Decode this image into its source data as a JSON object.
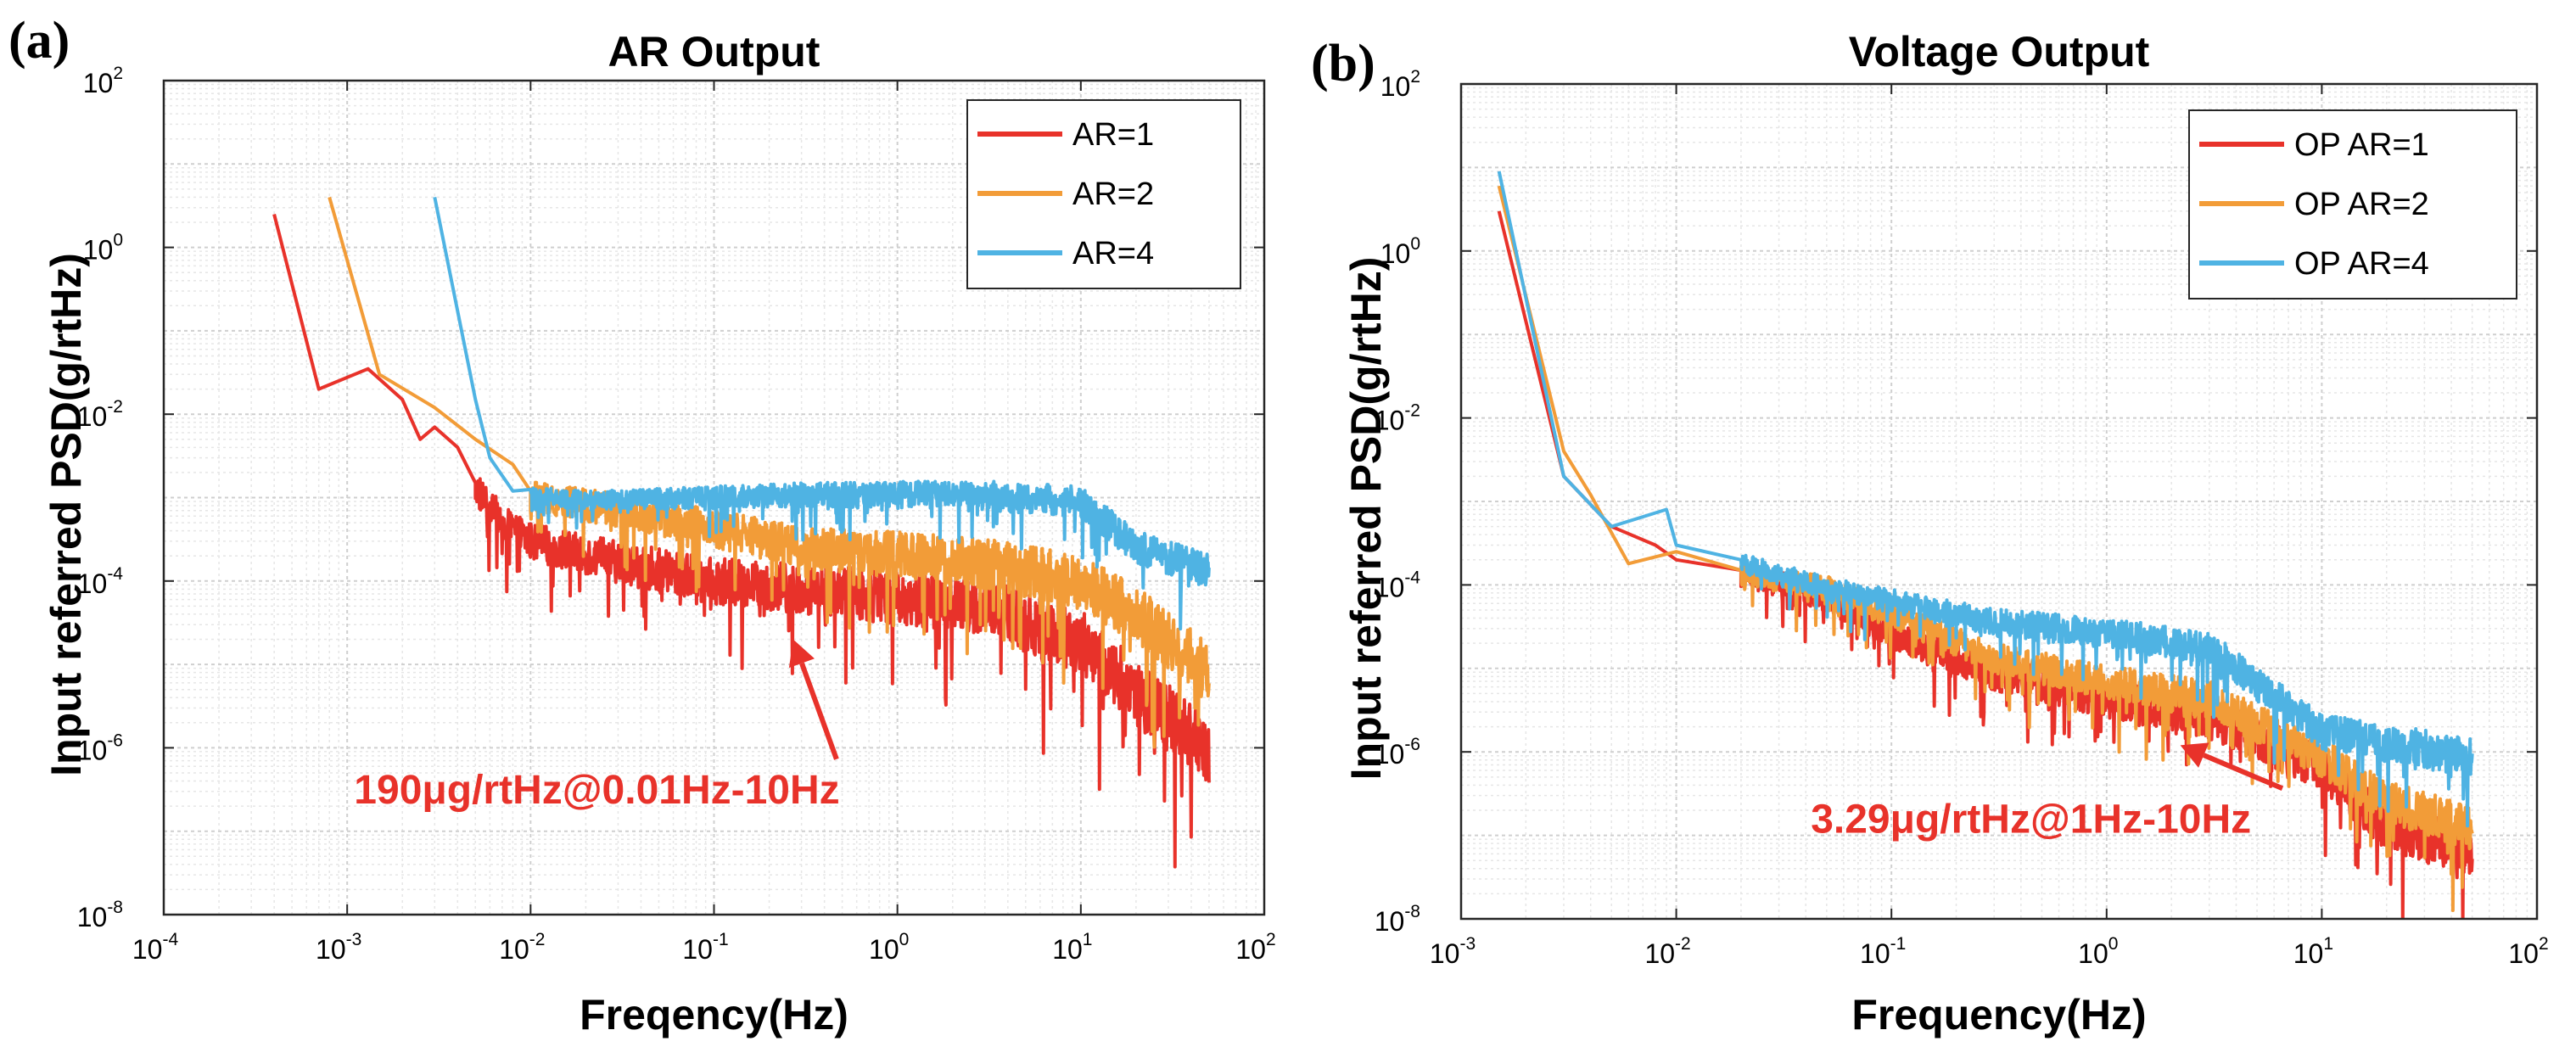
{
  "chart_data": [
    {
      "type": "line",
      "panel_label": "(a)",
      "title": "AR Output",
      "xlabel": "Freqency(Hz)",
      "ylabel": "Input referred PSD(g/rtHz)",
      "xscale": "log",
      "yscale": "log",
      "xlim": [
        0.0001,
        100
      ],
      "ylim": [
        1e-08,
        100
      ],
      "x_ticks": [
        {
          "base": "10",
          "exp": "-4"
        },
        {
          "base": "10",
          "exp": "-3"
        },
        {
          "base": "10",
          "exp": "-2"
        },
        {
          "base": "10",
          "exp": "-1"
        },
        {
          "base": "10",
          "exp": "0"
        },
        {
          "base": "10",
          "exp": "1"
        },
        {
          "base": "10",
          "exp": "2"
        }
      ],
      "y_ticks": [
        {
          "base": "10",
          "exp": "-8"
        },
        {
          "base": "10",
          "exp": "-6"
        },
        {
          "base": "10",
          "exp": "-4"
        },
        {
          "base": "10",
          "exp": "-2"
        },
        {
          "base": "10",
          "exp": "0"
        },
        {
          "base": "10",
          "exp": "2"
        }
      ],
      "grid": true,
      "legend": {
        "position": "top-right",
        "entries": [
          "AR=1",
          "AR=2",
          "AR=4"
        ]
      },
      "series": [
        {
          "name": "AR=1",
          "color": "#e8322a",
          "points": [
            [
              0.0004,
              2.5
            ],
            [
              0.0007,
              0.02
            ],
            [
              0.0013,
              0.035
            ],
            [
              0.002,
              0.015
            ],
            [
              0.0025,
              0.005
            ],
            [
              0.003,
              0.007
            ],
            [
              0.004,
              0.004
            ],
            [
              0.005,
              0.0015
            ],
            [
              0.007,
              0.0006
            ],
            [
              0.01,
              0.00035
            ],
            [
              0.03,
              0.0002
            ],
            [
              0.1,
              0.00012
            ],
            [
              0.3,
              0.0001
            ],
            [
              1,
              8e-05
            ],
            [
              3,
              6e-05
            ],
            [
              10,
              2.5e-05
            ],
            [
              20,
              6e-06
            ],
            [
              50,
              1.2e-06
            ]
          ],
          "noise": {
            "from": 0.005,
            "to": 50,
            "amplitude_decades": 1.4
          }
        },
        {
          "name": "AR=2",
          "color": "#f29c38",
          "points": [
            [
              0.0008,
              4
            ],
            [
              0.0015,
              0.03
            ],
            [
              0.003,
              0.012
            ],
            [
              0.005,
              0.005
            ],
            [
              0.008,
              0.0025
            ],
            [
              0.01,
              0.0012
            ],
            [
              0.03,
              0.0008
            ],
            [
              0.1,
              0.0005
            ],
            [
              0.3,
              0.0003
            ],
            [
              1,
              0.00025
            ],
            [
              3,
              0.0002
            ],
            [
              10,
              0.00012
            ],
            [
              20,
              5e-05
            ],
            [
              50,
              1e-05
            ]
          ],
          "noise": {
            "from": 0.01,
            "to": 50,
            "amplitude_decades": 1.2
          }
        },
        {
          "name": "AR=4",
          "color": "#4fb3e3",
          "points": [
            [
              0.003,
              4
            ],
            [
              0.005,
              0.015
            ],
            [
              0.006,
              0.003
            ],
            [
              0.008,
              0.0012
            ],
            [
              0.02,
              0.001
            ],
            [
              0.1,
              0.0011
            ],
            [
              0.3,
              0.0012
            ],
            [
              1,
              0.0012
            ],
            [
              3,
              0.0012
            ],
            [
              10,
              0.001
            ],
            [
              20,
              0.0003
            ],
            [
              50,
              0.00015
            ]
          ],
          "noise": {
            "from": 0.01,
            "to": 50,
            "amplitude_decades": 0.7
          }
        }
      ],
      "annotation": {
        "text": "190μg/rtHz@0.01Hz-10Hz",
        "color": "#e8322a",
        "arrow_to": [
          0.27,
          2e-05
        ],
        "text_at": [
          0.003,
          3e-07
        ]
      }
    },
    {
      "type": "line",
      "panel_label": "(b)",
      "title": "Voltage Output",
      "xlabel": "Frequency(Hz)",
      "ylabel": "Input referred PSD(g/rtHz)",
      "xscale": "log",
      "yscale": "log",
      "xlim": [
        0.001,
        100
      ],
      "ylim": [
        1e-08,
        100
      ],
      "x_ticks": [
        {
          "base": "10",
          "exp": "-3"
        },
        {
          "base": "10",
          "exp": "-2"
        },
        {
          "base": "10",
          "exp": "-1"
        },
        {
          "base": "10",
          "exp": "0"
        },
        {
          "base": "10",
          "exp": "1"
        },
        {
          "base": "10",
          "exp": "2"
        }
      ],
      "y_ticks": [
        {
          "base": "10",
          "exp": "-8"
        },
        {
          "base": "10",
          "exp": "-6"
        },
        {
          "base": "10",
          "exp": "-4"
        },
        {
          "base": "10",
          "exp": "-2"
        },
        {
          "base": "10",
          "exp": "0"
        },
        {
          "base": "10",
          "exp": "2"
        }
      ],
      "grid": true,
      "legend": {
        "position": "top-right",
        "entries": [
          "OP AR=1",
          "OP AR=2",
          "OP AR=4"
        ]
      },
      "series": [
        {
          "name": "OP AR=1",
          "color": "#e8322a",
          "points": [
            [
              0.0015,
              3
            ],
            [
              0.003,
              0.002
            ],
            [
              0.005,
              0.0005
            ],
            [
              0.008,
              0.0003
            ],
            [
              0.01,
              0.0002
            ],
            [
              0.02,
              0.00015
            ],
            [
              0.05,
              8e-05
            ],
            [
              0.1,
              3e-05
            ],
            [
              0.3,
              1e-05
            ],
            [
              1,
              5e-06
            ],
            [
              3,
              3e-06
            ],
            [
              10,
              8e-07
            ],
            [
              20,
              1.5e-07
            ],
            [
              50,
              8e-08
            ]
          ],
          "noise": {
            "from": 0.02,
            "to": 50,
            "amplitude_decades": 1.0
          }
        },
        {
          "name": "OP AR=2",
          "color": "#f29c38",
          "points": [
            [
              0.0015,
              6
            ],
            [
              0.003,
              0.004
            ],
            [
              0.004,
              0.0012
            ],
            [
              0.006,
              0.00018
            ],
            [
              0.01,
              0.00025
            ],
            [
              0.02,
              0.00015
            ],
            [
              0.05,
              0.0001
            ],
            [
              0.1,
              5e-05
            ],
            [
              0.3,
              1.5e-05
            ],
            [
              1,
              8e-06
            ],
            [
              3,
              5e-06
            ],
            [
              10,
              1e-06
            ],
            [
              20,
              3e-07
            ],
            [
              50,
              1.5e-07
            ]
          ],
          "noise": {
            "from": 0.02,
            "to": 50,
            "amplitude_decades": 0.9
          }
        },
        {
          "name": "OP AR=4",
          "color": "#4fb3e3",
          "points": [
            [
              0.0015,
              9
            ],
            [
              0.003,
              0.002
            ],
            [
              0.005,
              0.0005
            ],
            [
              0.009,
              0.0008
            ],
            [
              0.01,
              0.0003
            ],
            [
              0.02,
              0.0002
            ],
            [
              0.05,
              0.0001
            ],
            [
              0.1,
              7e-05
            ],
            [
              0.3,
              4e-05
            ],
            [
              1,
              3e-05
            ],
            [
              3,
              2e-05
            ],
            [
              10,
              2e-06
            ],
            [
              20,
              1.5e-06
            ],
            [
              50,
              1e-06
            ]
          ],
          "noise": {
            "from": 0.02,
            "to": 50,
            "amplitude_decades": 0.8
          }
        }
      ],
      "annotation": {
        "text": "3.29μg/rtHz@1Hz-10Hz",
        "color": "#e8322a",
        "arrow_to": [
          2.2,
          1.2e-06
        ],
        "text_at": [
          0.1,
          1.5e-07
        ]
      }
    }
  ]
}
